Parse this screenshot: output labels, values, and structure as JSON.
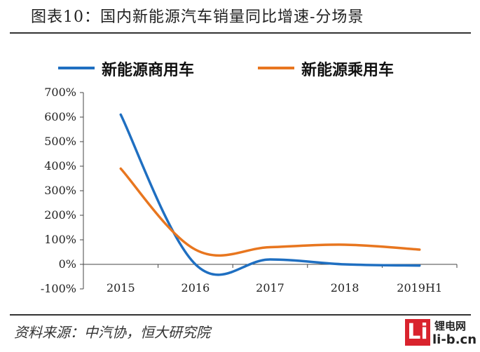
{
  "title": "图表10：国内新能源汽车销量同比增速-分场景",
  "source": "资料来源：中汽协，恒大研究院",
  "watermark": {
    "logo_letter": "Li",
    "cn": "锂电网",
    "en": "li-b.cn"
  },
  "chart_data": {
    "type": "line",
    "categories": [
      "2015",
      "2016",
      "2017",
      "2018",
      "2019H1"
    ],
    "ylim": [
      -100,
      700
    ],
    "yticks": [
      -100,
      0,
      100,
      200,
      300,
      400,
      500,
      600,
      700
    ],
    "ytick_labels": [
      "-100%",
      "0%",
      "100%",
      "200%",
      "300%",
      "400%",
      "500%",
      "600%",
      "700%"
    ],
    "legend_position": "top",
    "grid": false,
    "series": [
      {
        "name": "新能源商用车",
        "color": "#1f6fc1",
        "values": [
          610,
          0,
          20,
          0,
          -5
        ]
      },
      {
        "name": "新能源乘用车",
        "color": "#e8761f",
        "values": [
          390,
          60,
          70,
          80,
          60
        ]
      }
    ]
  }
}
